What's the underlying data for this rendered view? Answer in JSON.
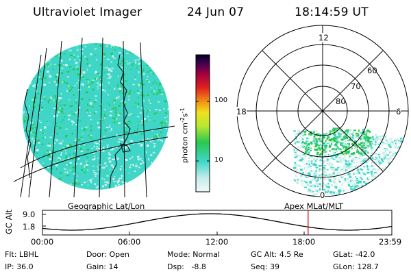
{
  "header": {
    "title": "Ultraviolet Imager",
    "date": "24 Jun 07",
    "time": "18:14:59 UT"
  },
  "colorbar": {
    "label": "photon cm",
    "exp1": "-2",
    "mid": "s",
    "exp2": "-1",
    "ticks": [
      "100",
      "10"
    ]
  },
  "polar": {
    "mlt_labels": {
      "top": "12",
      "left": "18",
      "right": "6",
      "bottom": "0"
    },
    "lat_labels": [
      "60",
      "70",
      "80"
    ]
  },
  "map_titles": {
    "left": "Geographic Lat/Lon",
    "right": "Apex MLat/MLT"
  },
  "orbit": {
    "ylabel": "GC Alt",
    "y_ticks": [
      "9.0",
      "1.8"
    ],
    "x_ticks": [
      "00:00",
      "06:00",
      "12:00",
      "18:00",
      "23:59"
    ],
    "current_time_frac": 0.7604
  },
  "status": {
    "row1": [
      {
        "label": "Flt:",
        "value": "LBHL"
      },
      {
        "label": "Door:",
        "value": "Open"
      },
      {
        "label": "Mode:",
        "value": "Normal"
      },
      {
        "label": "GC Alt:",
        "value": "4.5 Re"
      },
      {
        "label": "GLat:",
        "value": "-42.0"
      }
    ],
    "row2": [
      {
        "label": "IP:",
        "value": "36.0"
      },
      {
        "label": "Gain:",
        "value": "14"
      },
      {
        "label": "Dsp:",
        "value": "-8.8"
      },
      {
        "label": "Seq:",
        "value": "39"
      },
      {
        "label": "GLon:",
        "value": "128.7"
      }
    ]
  },
  "colors": {
    "aurora_base": "#3fd6c8",
    "aurora_high": "#28c850",
    "background_low": "#c8ece8",
    "marker": "#cc0000"
  }
}
